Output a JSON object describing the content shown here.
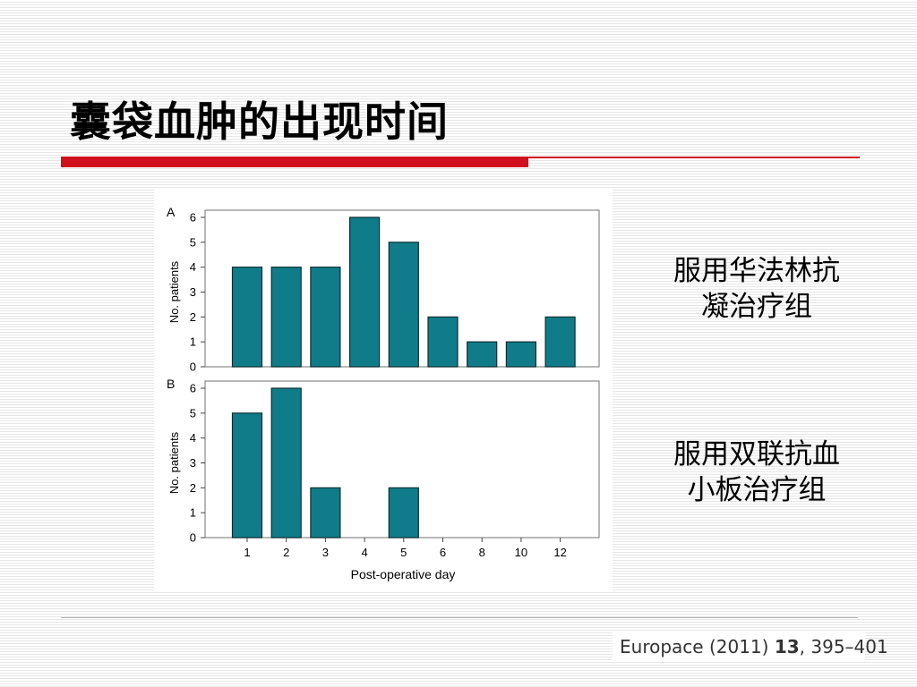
{
  "slide": {
    "title": "囊袋血肿的出现时间",
    "colors": {
      "rule_red": "#d0101d",
      "bar_fill": "#117c89",
      "bar_stroke": "#0a2f33",
      "axis": "#444444",
      "frame": "#888888",
      "text": "#000000"
    }
  },
  "labels": {
    "group_a": {
      "line1": "服用华法林抗",
      "line2": "凝治疗组"
    },
    "group_b": {
      "line1": "服用双联抗血",
      "line2": "小板治疗组"
    }
  },
  "citation": {
    "prefix": "Europace (2011) ",
    "volume": "13",
    "pages": ", 395–401"
  },
  "chart_data": [
    {
      "panel": "A",
      "type": "bar",
      "categories": [
        "1",
        "2",
        "3",
        "4",
        "5",
        "6",
        "8",
        "10",
        "12"
      ],
      "values": [
        4,
        4,
        4,
        6,
        5,
        2,
        1,
        1,
        2
      ],
      "ylabel": "No. patients",
      "xlabel": "",
      "ylim": [
        0,
        6
      ],
      "yticks": [
        0,
        1,
        2,
        3,
        4,
        5,
        6
      ],
      "show_xticklabels": false
    },
    {
      "panel": "B",
      "type": "bar",
      "categories": [
        "1",
        "2",
        "3",
        "4",
        "5",
        "6",
        "8",
        "10",
        "12"
      ],
      "values": [
        5,
        6,
        2,
        0,
        2,
        0,
        0,
        0,
        0
      ],
      "ylabel": "No. patients",
      "xlabel": "Post-operative day",
      "ylim": [
        0,
        6
      ],
      "yticks": [
        0,
        1,
        2,
        3,
        4,
        5,
        6
      ],
      "show_xticklabels": true
    }
  ]
}
